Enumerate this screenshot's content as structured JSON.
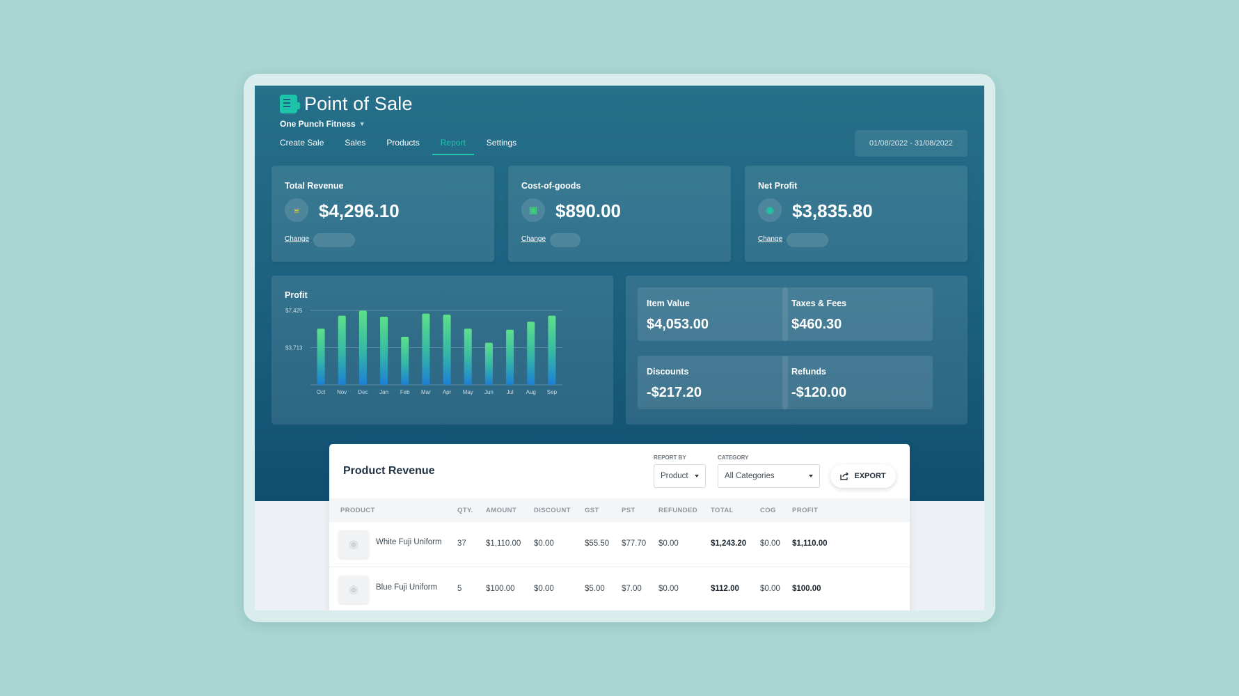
{
  "app": {
    "title": "Point of Sale",
    "organization": "One Punch Fitness"
  },
  "nav": {
    "tabs": [
      {
        "label": "Create Sale"
      },
      {
        "label": "Sales"
      },
      {
        "label": "Products"
      },
      {
        "label": "Report",
        "active": true
      },
      {
        "label": "Settings"
      }
    ]
  },
  "date_range": "01/08/2022 - 31/08/2022",
  "kpis": [
    {
      "label": "Total Revenue",
      "value": "$4,296.10",
      "change_label": "Change",
      "icon": "revenue-icon",
      "icon_color": "#e7c23c"
    },
    {
      "label": "Cost-of-goods",
      "value": "$890.00",
      "change_label": "Change",
      "icon": "goods-icon",
      "icon_color": "#3ecf7c"
    },
    {
      "label": "Net Profit",
      "value": "$3,835.80",
      "change_label": "Change",
      "icon": "profit-icon",
      "icon_color": "#23c3a6"
    }
  ],
  "profit_chart": {
    "title": "Profit",
    "chart_data": {
      "type": "bar",
      "categories": [
        "Oct",
        "Nov",
        "Dec",
        "Jan",
        "Feb",
        "Mar",
        "Apr",
        "May",
        "Jun",
        "Jul",
        "Aug",
        "Sep"
      ],
      "values": [
        5600,
        6900,
        7400,
        6800,
        4800,
        7100,
        7000,
        5600,
        4200,
        5500,
        6300,
        6900
      ],
      "y_ticks": [
        "$7,425",
        "$3,713"
      ],
      "ylim": [
        0,
        7425
      ],
      "grid": true
    }
  },
  "stats": [
    {
      "label": "Item Value",
      "value": "$4,053.00"
    },
    {
      "label": "Taxes & Fees",
      "value": "$460.30"
    },
    {
      "label": "Discounts",
      "value": "-$217.20"
    },
    {
      "label": "Refunds",
      "value": "-$120.00"
    }
  ],
  "product_revenue": {
    "title": "Product Revenue",
    "report_by": {
      "label": "REPORT BY",
      "value": "Product"
    },
    "category": {
      "label": "CATEGORY",
      "value": "All Categories"
    },
    "export_label": "EXPORT",
    "columns": [
      "PRODUCT",
      "QTY.",
      "AMOUNT",
      "DISCOUNT",
      "GST",
      "PST",
      "REFUNDED",
      "TOTAL",
      "COG",
      "PROFIT"
    ],
    "rows": [
      {
        "product": "White Fuji Uniform",
        "qty": "37",
        "amount": "$1,110.00",
        "discount": "$0.00",
        "gst": "$55.50",
        "pst": "$77.70",
        "refunded": "$0.00",
        "total": "$1,243.20",
        "cog": "$0.00",
        "profit": "$1,110.00"
      },
      {
        "product": "Blue Fuji Uniform",
        "qty": "5",
        "amount": "$100.00",
        "discount": "$0.00",
        "gst": "$5.00",
        "pst": "$7.00",
        "refunded": "$0.00",
        "total": "$112.00",
        "cog": "$0.00",
        "profit": "$100.00"
      }
    ]
  },
  "colors": {
    "accent": "#1fc5aa",
    "bar_top": "#5de08a",
    "bar_bottom": "#1d7fd4",
    "header_bg": "#1b5f7e"
  }
}
